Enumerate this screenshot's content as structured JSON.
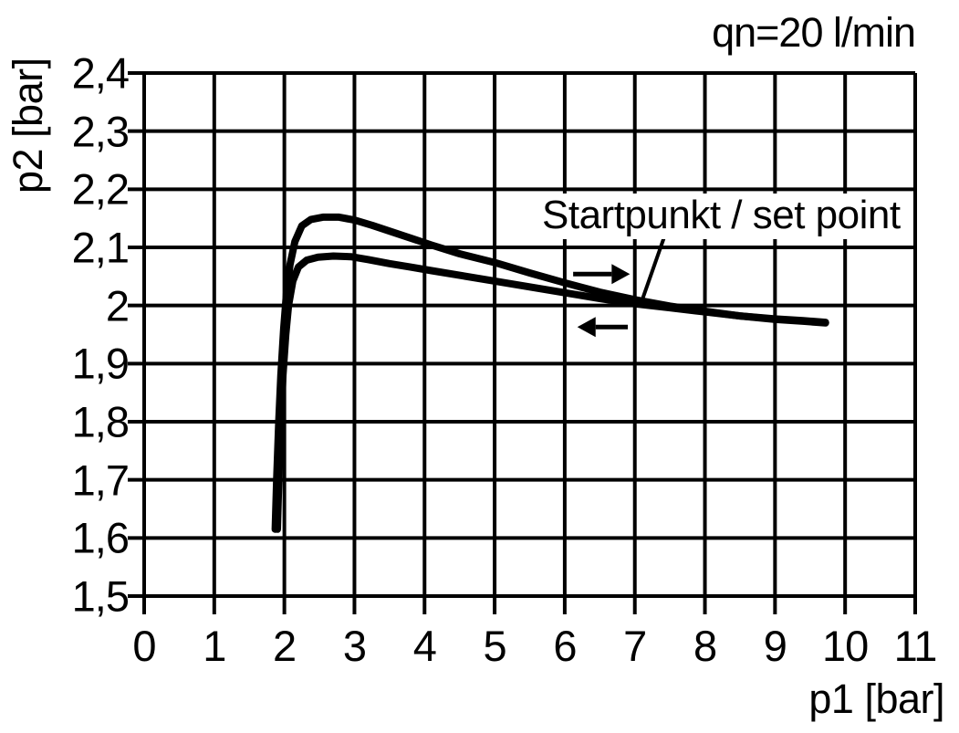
{
  "chart_data": {
    "type": "line",
    "title": "",
    "condition_label": "qn=20 l/min",
    "xlabel": "p1 [bar]",
    "ylabel": "p2 [bar]",
    "xlim": [
      0,
      11
    ],
    "ylim": [
      1.5,
      2.4
    ],
    "grid": true,
    "decimal_separator": ",",
    "colors": {
      "line": "#000000",
      "background": "#ffffff"
    },
    "xticks": [
      0,
      1,
      2,
      3,
      4,
      5,
      6,
      7,
      8,
      9,
      10,
      11
    ],
    "xtick_labels": [
      "0",
      "1",
      "2",
      "3",
      "4",
      "5",
      "6",
      "7",
      "8",
      "9",
      "10",
      "11"
    ],
    "yticks": [
      2.4,
      2.3,
      2.2,
      2.1,
      2.0,
      1.9,
      1.8,
      1.7,
      1.6,
      1.5
    ],
    "ytick_labels": [
      "2,4",
      "2,3",
      "2,2",
      "2,1",
      "2",
      "1,9",
      "1,8",
      "1,7",
      "1,6",
      "1,5"
    ],
    "series": [
      {
        "name": "upper-curve",
        "direction_arrow": "right",
        "points": [
          [
            1.87,
            1.615
          ],
          [
            1.89,
            1.7
          ],
          [
            1.92,
            1.8
          ],
          [
            1.95,
            1.88
          ],
          [
            1.99,
            1.96
          ],
          [
            2.03,
            2.02
          ],
          [
            2.08,
            2.07
          ],
          [
            2.15,
            2.11
          ],
          [
            2.25,
            2.137
          ],
          [
            2.38,
            2.148
          ],
          [
            2.55,
            2.152
          ],
          [
            2.78,
            2.152
          ],
          [
            3.0,
            2.147
          ],
          [
            3.25,
            2.138
          ],
          [
            3.5,
            2.128
          ],
          [
            3.8,
            2.116
          ],
          [
            4.1,
            2.104
          ],
          [
            4.5,
            2.089
          ],
          [
            5.0,
            2.074
          ],
          [
            5.5,
            2.056
          ],
          [
            6.0,
            2.039
          ],
          [
            6.5,
            2.023
          ],
          [
            7.0,
            2.01
          ],
          [
            7.5,
            1.999
          ],
          [
            8.0,
            1.99
          ],
          [
            8.5,
            1.982
          ],
          [
            9.0,
            1.977
          ],
          [
            9.4,
            1.974
          ],
          [
            9.72,
            1.971
          ]
        ]
      },
      {
        "name": "lower-curve",
        "direction_arrow": "left",
        "points": [
          [
            1.9,
            1.615
          ],
          [
            1.92,
            1.7
          ],
          [
            1.95,
            1.8
          ],
          [
            1.98,
            1.88
          ],
          [
            2.02,
            1.95
          ],
          [
            2.06,
            2.0
          ],
          [
            2.12,
            2.042
          ],
          [
            2.2,
            2.066
          ],
          [
            2.32,
            2.078
          ],
          [
            2.48,
            2.083
          ],
          [
            2.7,
            2.085
          ],
          [
            2.95,
            2.084
          ],
          [
            3.2,
            2.079
          ],
          [
            3.5,
            2.072
          ],
          [
            3.8,
            2.066
          ],
          [
            4.1,
            2.06
          ],
          [
            4.5,
            2.052
          ],
          [
            5.0,
            2.042
          ],
          [
            5.5,
            2.032
          ],
          [
            6.0,
            2.022
          ],
          [
            6.5,
            2.012
          ],
          [
            7.0,
            2.003
          ],
          [
            7.5,
            1.996
          ],
          [
            8.0,
            1.989
          ],
          [
            8.5,
            1.982
          ],
          [
            9.0,
            1.976
          ],
          [
            9.4,
            1.973
          ],
          [
            9.72,
            1.97
          ]
        ]
      }
    ],
    "annotations": {
      "set_point": {
        "label": "Startpunkt / set point",
        "leader": {
          "from": [
            7.42,
            2.118
          ],
          "to": [
            7.08,
            2.001
          ]
        },
        "points_to": [
          7.08,
          2.0
        ]
      },
      "arrows": [
        {
          "dir": "right",
          "from": [
            6.12,
            2.054
          ],
          "to": [
            6.93,
            2.054
          ]
        },
        {
          "dir": "left",
          "from": [
            6.9,
            1.963
          ],
          "to": [
            6.18,
            1.963
          ]
        }
      ]
    }
  }
}
